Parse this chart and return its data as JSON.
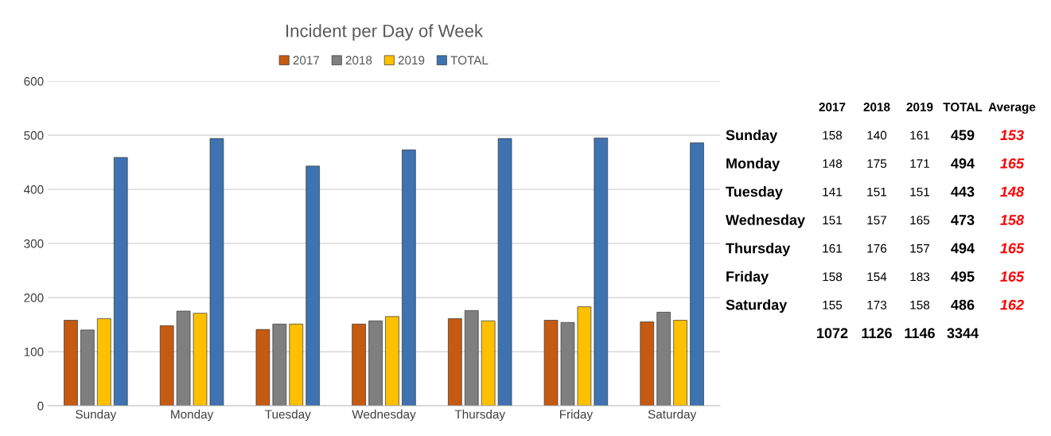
{
  "chart_data": [
    {
      "type": "bar",
      "title": "Incident per Day of Week",
      "categories": [
        "Sunday",
        "Monday",
        "Tuesday",
        "Wednesday",
        "Thursday",
        "Friday",
        "Saturday"
      ],
      "series": [
        {
          "name": "2017",
          "color": "#c55a11",
          "values": [
            158,
            148,
            141,
            151,
            161,
            158,
            155
          ]
        },
        {
          "name": "2018",
          "color": "#7f7f7f",
          "values": [
            140,
            175,
            151,
            157,
            176,
            154,
            173
          ]
        },
        {
          "name": "2019",
          "color": "#ffc000",
          "values": [
            161,
            171,
            151,
            165,
            157,
            183,
            158
          ]
        },
        {
          "name": "TOTAL",
          "color": "#3f72b0",
          "values": [
            459,
            494,
            443,
            473,
            494,
            495,
            486
          ]
        }
      ],
      "ylim": [
        0,
        600
      ],
      "yticks": [
        0,
        100,
        200,
        300,
        400,
        500,
        600
      ],
      "grid": "y",
      "legend": "top"
    },
    {
      "type": "other",
      "categories": [
        "Sunday",
        "Monday",
        "Tuesday",
        "Wednesday",
        "Thursday",
        "Friday",
        "Saturday"
      ],
      "annotations": [
        "1072",
        "1126",
        "1146",
        "3344"
      ],
      "series": [
        {
          "name": "2017",
          "values": [
            158,
            148,
            141,
            151,
            161,
            158,
            155
          ]
        },
        {
          "name": "2018",
          "values": [
            140,
            175,
            151,
            157,
            176,
            154,
            173
          ]
        },
        {
          "name": "2019",
          "values": [
            161,
            171,
            151,
            165,
            157,
            183,
            158
          ]
        },
        {
          "name": "TOTAL",
          "values": [
            459,
            494,
            443,
            473,
            494,
            495,
            486
          ]
        },
        {
          "name": "Average",
          "values": [
            153,
            165,
            148,
            158,
            165,
            165,
            162
          ]
        }
      ],
      "data_labels": true
    }
  ]
}
